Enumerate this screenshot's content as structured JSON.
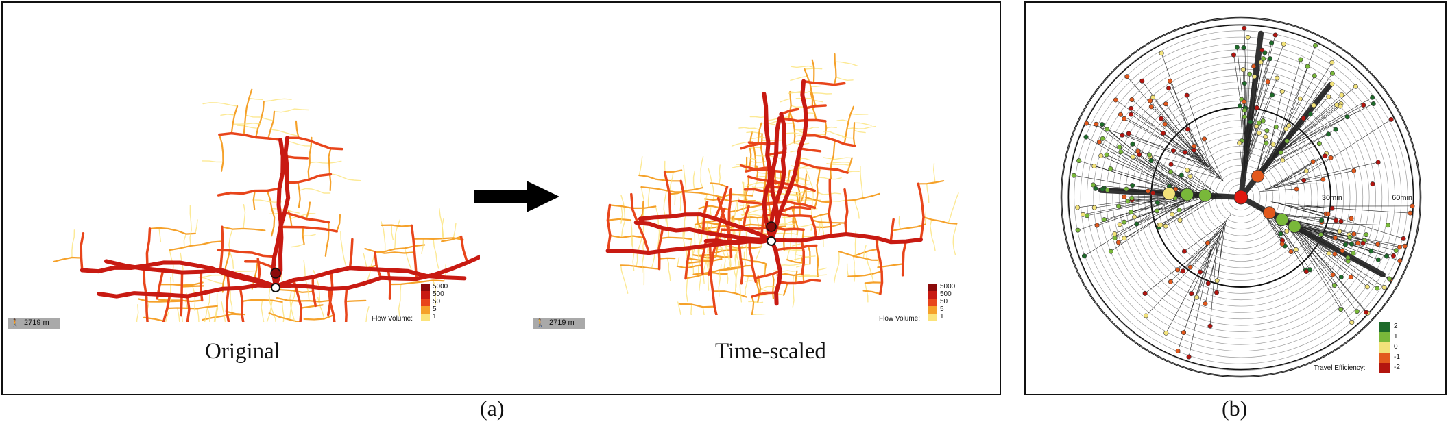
{
  "panel_a": {
    "caption": "(a)",
    "maps": [
      {
        "title": "Original",
        "scale_label": "2719 m"
      },
      {
        "title": "Time-scaled",
        "scale_label": "2719 m"
      }
    ],
    "legend": {
      "title": "Flow Volume:",
      "entries": [
        {
          "label": "5000",
          "color": "#8b0a0a"
        },
        {
          "label": "500",
          "color": "#c81a12"
        },
        {
          "label": "50",
          "color": "#e8451b"
        },
        {
          "label": "5",
          "color": "#f5a12a"
        },
        {
          "label": "1",
          "color": "#fbe37a"
        }
      ]
    },
    "arrow_color": "#000000"
  },
  "panel_b": {
    "caption": "(b)",
    "ring_labels": [
      "30min",
      "60min"
    ],
    "legend": {
      "title": "Travel Efficiency:",
      "entries": [
        {
          "label": "2",
          "color": "#1e6b2a"
        },
        {
          "label": "1",
          "color": "#79b83a"
        },
        {
          "label": "0",
          "color": "#f2e27a"
        },
        {
          "label": "-1",
          "color": "#e2591d"
        },
        {
          "label": "-2",
          "color": "#b3150f"
        }
      ]
    }
  }
}
